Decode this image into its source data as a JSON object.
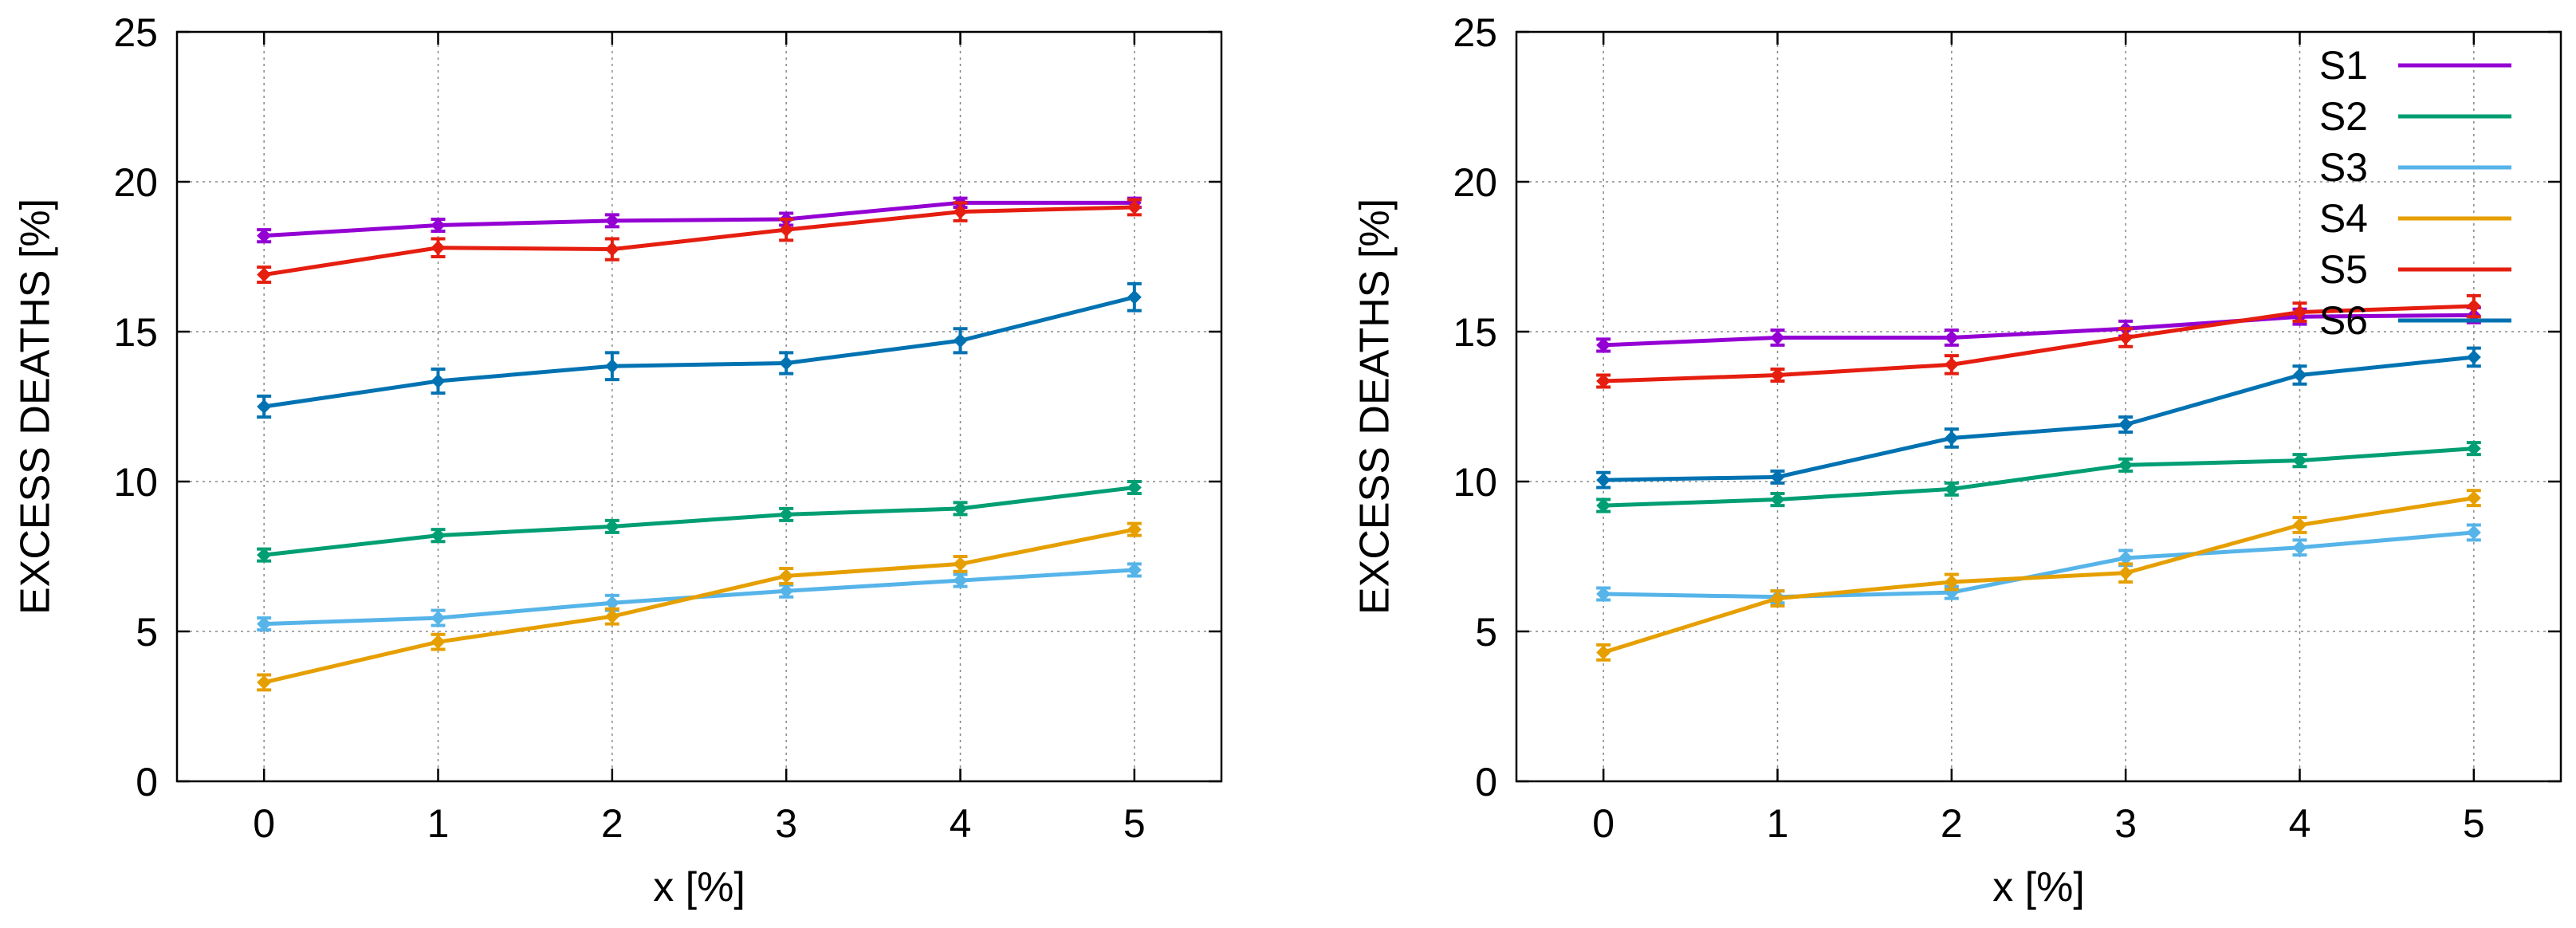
{
  "chart_data": [
    {
      "type": "line",
      "title": "",
      "xlabel": "x [%]",
      "ylabel": "EXCESS DEATHS [%]",
      "x": [
        0,
        1,
        2,
        3,
        4,
        5
      ],
      "xlim": [
        -0.5,
        5.5
      ],
      "ylim": [
        0,
        25
      ],
      "xticks": [
        "0",
        "1",
        "2",
        "3",
        "4",
        "5"
      ],
      "yticks": [
        "0",
        "5",
        "10",
        "15",
        "20",
        "25"
      ],
      "grid": true,
      "legend": null,
      "series": [
        {
          "name": "S1",
          "color": "#9400d3",
          "values": [
            18.2,
            18.55,
            18.7,
            18.75,
            19.3,
            19.3
          ],
          "err": [
            0.2,
            0.2,
            0.2,
            0.2,
            0.15,
            0.15
          ]
        },
        {
          "name": "S2",
          "color": "#009e73",
          "values": [
            7.55,
            8.2,
            8.5,
            8.9,
            9.1,
            9.8
          ],
          "err": [
            0.2,
            0.2,
            0.2,
            0.2,
            0.2,
            0.2
          ]
        },
        {
          "name": "S3",
          "color": "#56b4e9",
          "values": [
            5.25,
            5.45,
            5.95,
            6.35,
            6.7,
            7.05
          ],
          "err": [
            0.2,
            0.25,
            0.25,
            0.2,
            0.2,
            0.2
          ]
        },
        {
          "name": "S4",
          "color": "#e69f00",
          "values": [
            3.3,
            4.65,
            5.5,
            6.85,
            7.25,
            8.4
          ],
          "err": [
            0.25,
            0.25,
            0.25,
            0.25,
            0.25,
            0.2
          ]
        },
        {
          "name": "S5",
          "color": "#e51e10",
          "values": [
            16.9,
            17.8,
            17.75,
            18.4,
            19.0,
            19.15
          ],
          "err": [
            0.25,
            0.3,
            0.35,
            0.35,
            0.3,
            0.25
          ]
        },
        {
          "name": "S6",
          "color": "#0072b2",
          "values": [
            12.5,
            13.35,
            13.85,
            13.95,
            14.7,
            16.15
          ],
          "err": [
            0.35,
            0.4,
            0.45,
            0.35,
            0.4,
            0.45
          ]
        }
      ]
    },
    {
      "type": "line",
      "title": "",
      "xlabel": "x [%]",
      "ylabel": "EXCESS DEATHS [%]",
      "x": [
        0,
        1,
        2,
        3,
        4,
        5
      ],
      "xlim": [
        -0.5,
        5.5
      ],
      "ylim": [
        0,
        25
      ],
      "xticks": [
        "0",
        "1",
        "2",
        "3",
        "4",
        "5"
      ],
      "yticks": [
        "0",
        "5",
        "10",
        "15",
        "20",
        "25"
      ],
      "grid": true,
      "legend": "top-right",
      "series": [
        {
          "name": "S1",
          "color": "#9400d3",
          "values": [
            14.55,
            14.8,
            14.8,
            15.1,
            15.5,
            15.55
          ],
          "err": [
            0.2,
            0.25,
            0.25,
            0.25,
            0.25,
            0.25
          ]
        },
        {
          "name": "S2",
          "color": "#009e73",
          "values": [
            9.2,
            9.4,
            9.75,
            10.55,
            10.7,
            11.1
          ],
          "err": [
            0.2,
            0.2,
            0.2,
            0.2,
            0.2,
            0.2
          ]
        },
        {
          "name": "S3",
          "color": "#56b4e9",
          "values": [
            6.25,
            6.15,
            6.3,
            7.45,
            7.8,
            8.3
          ],
          "err": [
            0.2,
            0.2,
            0.2,
            0.25,
            0.25,
            0.25
          ]
        },
        {
          "name": "S4",
          "color": "#e69f00",
          "values": [
            4.3,
            6.1,
            6.65,
            6.95,
            8.55,
            9.45
          ],
          "err": [
            0.25,
            0.25,
            0.25,
            0.3,
            0.25,
            0.25
          ]
        },
        {
          "name": "S5",
          "color": "#e51e10",
          "values": [
            13.35,
            13.55,
            13.9,
            14.8,
            15.65,
            15.85
          ],
          "err": [
            0.2,
            0.2,
            0.3,
            0.3,
            0.3,
            0.35
          ]
        },
        {
          "name": "S6",
          "color": "#0072b2",
          "values": [
            10.05,
            10.15,
            11.45,
            11.9,
            13.55,
            14.15
          ],
          "err": [
            0.25,
            0.2,
            0.3,
            0.25,
            0.3,
            0.3
          ]
        }
      ]
    }
  ]
}
